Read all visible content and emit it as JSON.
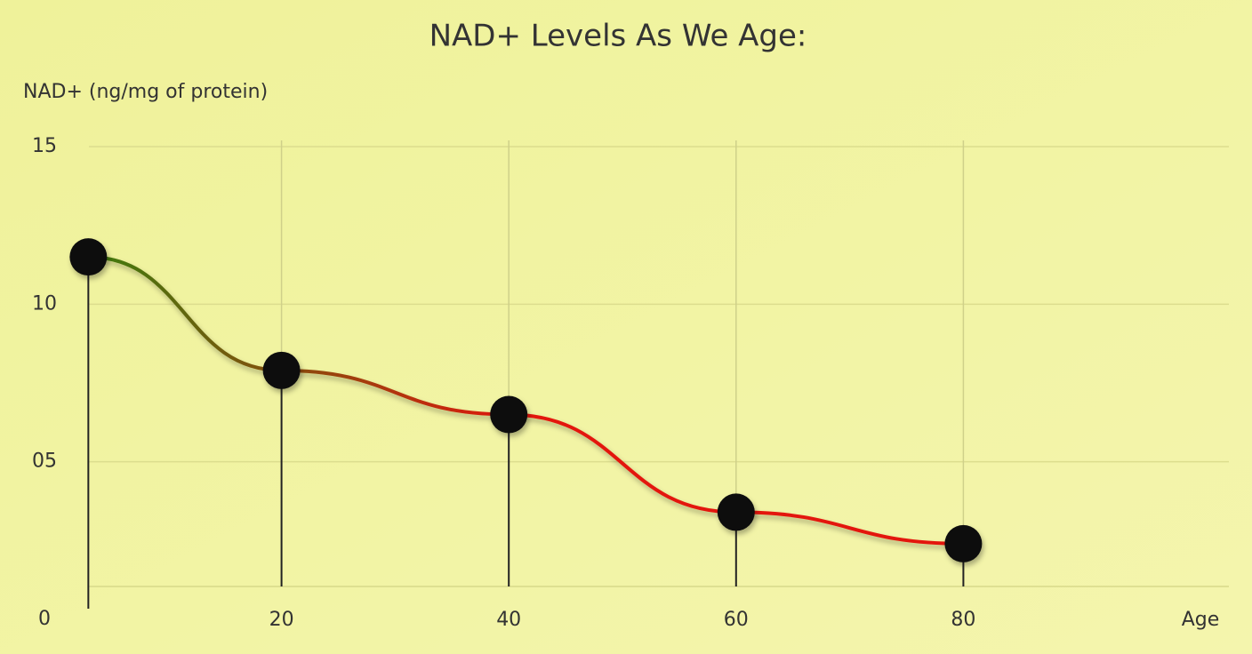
{
  "chart_data": {
    "type": "line",
    "title": "NAD+ Levels As We Age:",
    "y_label": "NAD+ (ng/mg of protein)",
    "x_label": "Age",
    "x": [
      3,
      20,
      40,
      60,
      80
    ],
    "series": [
      {
        "values": [
          11.5,
          7.9,
          6.5,
          3.4,
          2.4
        ],
        "color": "#e3150c",
        "start_color": "#3b7d0a",
        "marker_color": "#111111"
      }
    ],
    "xlim": [
      0,
      100
    ],
    "xticks": [
      20,
      40,
      60,
      80
    ],
    "ylim": [
      0,
      15
    ],
    "yticks": [
      0,
      {
        "value": 5,
        "label": "05"
      },
      10,
      15
    ],
    "grid": true
  }
}
